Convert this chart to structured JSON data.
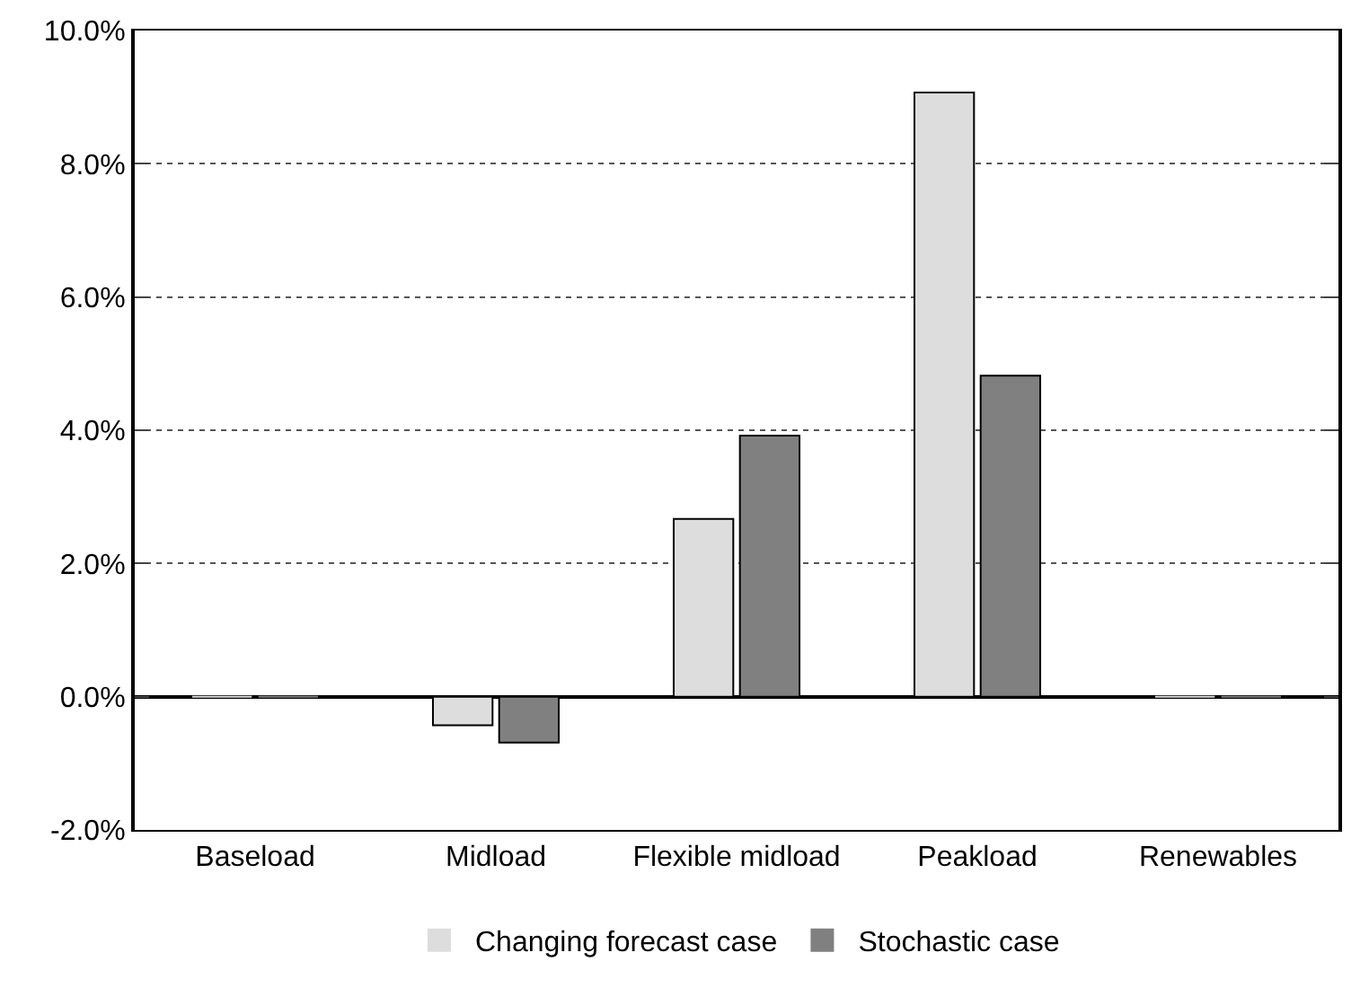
{
  "chart_data": {
    "type": "bar",
    "categories": [
      "Baseload",
      "Midload",
      "Flexible midload",
      "Peakload",
      "Renewables"
    ],
    "series": [
      {
        "name": "Changing forecast case",
        "color": "#dddddd",
        "values": [
          0,
          -0.43,
          2.67,
          9.07,
          0
        ]
      },
      {
        "name": "Stochastic case",
        "color": "#808080",
        "values": [
          0,
          -0.69,
          3.92,
          4.82,
          0
        ]
      }
    ],
    "ylim": [
      -2,
      10
    ],
    "yticks": [
      {
        "value": -2,
        "label": "-2.0%"
      },
      {
        "value": 0,
        "label": "0.0%"
      },
      {
        "value": 2,
        "label": "2.0%"
      },
      {
        "value": 4,
        "label": "4.0%"
      },
      {
        "value": 6,
        "label": "6.0%"
      },
      {
        "value": 8,
        "label": "8.0%"
      },
      {
        "value": 10,
        "label": "10.0%"
      }
    ],
    "grid": "y",
    "legend": "bottom"
  }
}
